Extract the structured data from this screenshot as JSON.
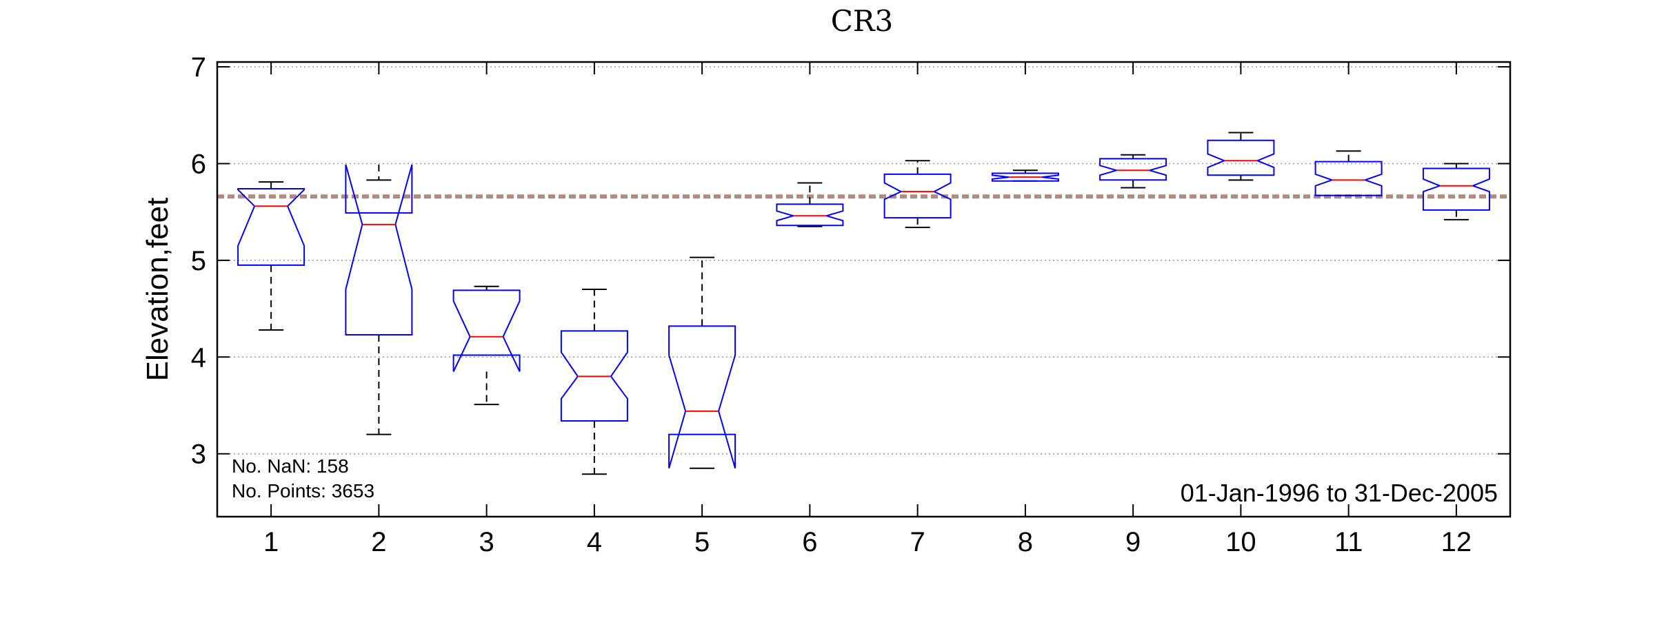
{
  "chart_data": {
    "type": "box",
    "title": "CR3",
    "xlabel": "",
    "ylabel": "Elevation,feet",
    "categories": [
      "1",
      "2",
      "3",
      "4",
      "5",
      "6",
      "7",
      "8",
      "9",
      "10",
      "11",
      "12"
    ],
    "ylim": [
      2.35,
      7.05
    ],
    "yticks": [
      3,
      4,
      5,
      6,
      7
    ],
    "grid": "horizontal dotted",
    "reference_line": {
      "value": 5.66,
      "color": "#b08a80",
      "style": "dashed"
    },
    "notched": true,
    "boxes": [
      {
        "whisker_low": 4.28,
        "q1": 4.95,
        "notch_low": 5.15,
        "median": 5.56,
        "notch_high": 5.73,
        "q3": 5.74,
        "whisker_high": 5.81
      },
      {
        "whisker_low": 3.2,
        "q1": 4.23,
        "notch_low": 4.7,
        "median": 5.37,
        "notch_high": 5.99,
        "q3": 5.49,
        "whisker_high": 5.83
      },
      {
        "whisker_low": 3.51,
        "q1": 4.02,
        "notch_low": 3.85,
        "median": 4.21,
        "notch_high": 4.58,
        "q3": 4.69,
        "whisker_high": 4.73
      },
      {
        "whisker_low": 2.79,
        "q1": 3.34,
        "notch_low": 3.57,
        "median": 3.8,
        "notch_high": 4.05,
        "q3": 4.27,
        "whisker_high": 4.7
      },
      {
        "whisker_low": 2.85,
        "q1": 3.2,
        "notch_low": 2.85,
        "median": 3.44,
        "notch_high": 4.02,
        "q3": 4.32,
        "whisker_high": 5.03
      },
      {
        "whisker_low": 5.35,
        "q1": 5.36,
        "notch_low": 5.41,
        "median": 5.46,
        "notch_high": 5.51,
        "q3": 5.58,
        "whisker_high": 5.8
      },
      {
        "whisker_low": 5.34,
        "q1": 5.44,
        "notch_low": 5.63,
        "median": 5.71,
        "notch_high": 5.8,
        "q3": 5.89,
        "whisker_high": 6.03
      },
      {
        "whisker_low": 5.82,
        "q1": 5.82,
        "notch_low": 5.84,
        "median": 5.86,
        "notch_high": 5.88,
        "q3": 5.9,
        "whisker_high": 5.93
      },
      {
        "whisker_low": 5.75,
        "q1": 5.83,
        "notch_low": 5.88,
        "median": 5.93,
        "notch_high": 5.98,
        "q3": 6.05,
        "whisker_high": 6.09
      },
      {
        "whisker_low": 5.83,
        "q1": 5.88,
        "notch_low": 5.96,
        "median": 6.03,
        "notch_high": 6.1,
        "q3": 6.24,
        "whisker_high": 6.32
      },
      {
        "whisker_low": 5.67,
        "q1": 5.67,
        "notch_low": 5.77,
        "median": 5.83,
        "notch_high": 5.89,
        "q3": 6.02,
        "whisker_high": 6.13
      },
      {
        "whisker_low": 5.42,
        "q1": 5.52,
        "notch_low": 5.71,
        "median": 5.77,
        "notch_high": 5.84,
        "q3": 5.95,
        "whisker_high": 6.0
      }
    ],
    "colors": {
      "box": "#0000ff",
      "median": "#ff0000",
      "whisker": "#000000"
    },
    "annotations": {
      "nan_count": "No. NaN: 158",
      "point_count": "No. Points: 3653",
      "date_range": "01-Jan-1996 to 31-Dec-2005"
    }
  }
}
